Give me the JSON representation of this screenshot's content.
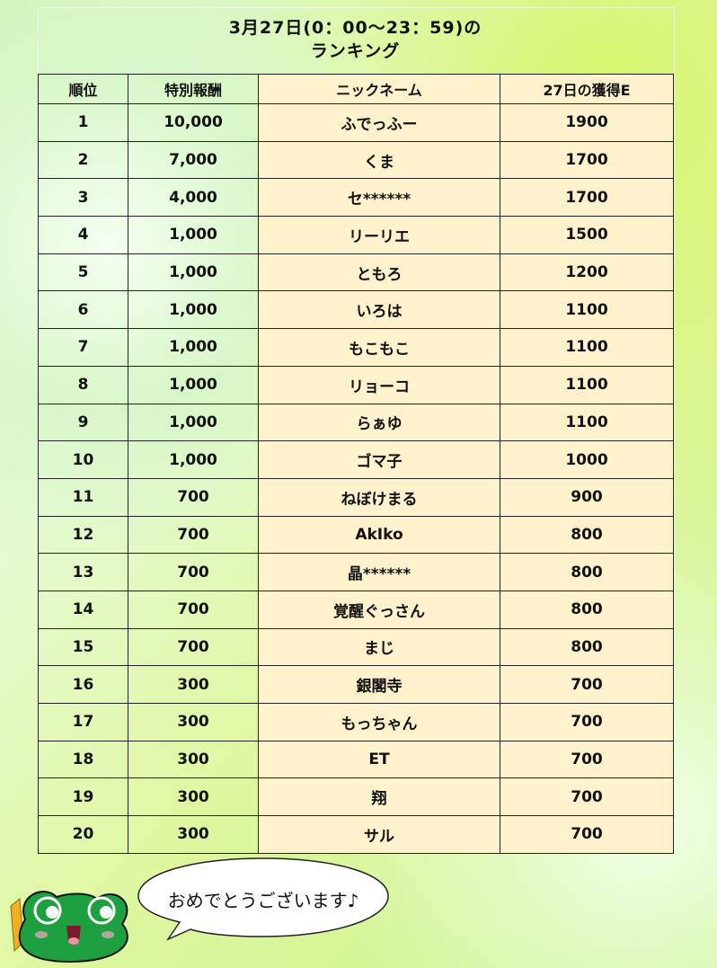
{
  "title": {
    "line1": "3月27日(0：00〜23：59)の",
    "line2": "ランキング"
  },
  "table": {
    "headers": [
      "順位",
      "特別報酬",
      "ニックネーム",
      "27日の獲得E"
    ],
    "rows": [
      [
        "1",
        "10,000",
        "ふでっふー",
        "1900"
      ],
      [
        "2",
        "7,000",
        "くま",
        "1700"
      ],
      [
        "3",
        "4,000",
        "セ******",
        "1700"
      ],
      [
        "4",
        "1,000",
        "リーリエ",
        "1500"
      ],
      [
        "5",
        "1,000",
        "ともろ",
        "1200"
      ],
      [
        "6",
        "1,000",
        "いろは",
        "1100"
      ],
      [
        "7",
        "1,000",
        "もこもこ",
        "1100"
      ],
      [
        "8",
        "1,000",
        "リョーコ",
        "1100"
      ],
      [
        "9",
        "1,000",
        "らぁゆ",
        "1100"
      ],
      [
        "10",
        "1,000",
        "ゴマ子",
        "1000"
      ],
      [
        "11",
        "700",
        "ねぼけまる",
        "900"
      ],
      [
        "12",
        "700",
        "AkIko",
        "800"
      ],
      [
        "13",
        "700",
        "晶******",
        "800"
      ],
      [
        "14",
        "700",
        "覚醒ぐっさん",
        "800"
      ],
      [
        "15",
        "700",
        "まじ",
        "800"
      ],
      [
        "16",
        "300",
        "銀閣寺",
        "700"
      ],
      [
        "17",
        "300",
        "もっちゃん",
        "700"
      ],
      [
        "18",
        "300",
        "ET",
        "700"
      ],
      [
        "19",
        "300",
        "翔",
        "700"
      ],
      [
        "20",
        "300",
        "サル",
        "700"
      ]
    ]
  },
  "footer": {
    "message": "おめでとうございます♪",
    "mascot": "frog-mascot-icon"
  },
  "colors": {
    "name_column_bg": "#fff2cc",
    "frog_green": "#1fa040"
  }
}
